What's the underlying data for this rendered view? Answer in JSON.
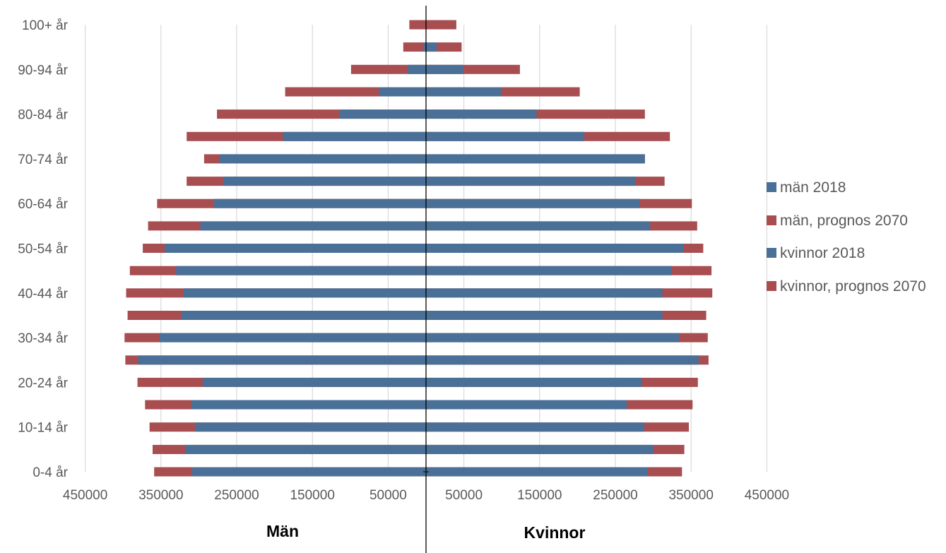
{
  "chart_data": {
    "type": "bar",
    "orientation": "population-pyramid",
    "categories": [
      "0-4 år",
      "",
      "10-14 år",
      "",
      "20-24 år",
      "",
      "30-34 år",
      "",
      "40-44 år",
      "",
      "50-54 år",
      "",
      "60-64 år",
      "",
      "70-74 år",
      "",
      "80-84 år",
      "",
      "90-94 år",
      "",
      "100+ år"
    ],
    "y_tick_labels": [
      "0-4 år",
      "10-14 år",
      "20-24 år",
      "30-34 år",
      "40-44 år",
      "50-54 år",
      "60-64 år",
      "70-74 år",
      "80-84 år",
      "90-94 år",
      "100+ år"
    ],
    "x_tick_labels_left": [
      "450000",
      "350000",
      "250000",
      "150000",
      "50000"
    ],
    "x_tick_labels_right": [
      "50000",
      "150000",
      "250000",
      "350000",
      "450000"
    ],
    "x_max": 450000,
    "left_label": "Män",
    "right_label": "Kvinnor",
    "grid": true,
    "legend_position": "right",
    "series": [
      {
        "name": "män 2018",
        "side": "left",
        "color": "#4a7098",
        "values": [
          309000,
          318000,
          305000,
          310000,
          295000,
          380000,
          352000,
          323000,
          320000,
          330000,
          345000,
          298000,
          280000,
          268000,
          273000,
          189000,
          114000,
          62000,
          24000,
          3000,
          0
        ]
      },
      {
        "name": "män, prognos 2070",
        "side": "left",
        "color": "#a84d50",
        "values": [
          359000,
          361000,
          365000,
          371000,
          381000,
          397000,
          398000,
          394000,
          396000,
          391000,
          374000,
          367000,
          355000,
          316000,
          293000,
          316000,
          276000,
          186000,
          99000,
          30000,
          22000
        ]
      },
      {
        "name": "kvinnor 2018",
        "side": "right",
        "color": "#4a7098",
        "values": [
          293000,
          300000,
          288000,
          265000,
          285000,
          360000,
          334000,
          312000,
          312000,
          324000,
          340000,
          296000,
          282000,
          276000,
          289000,
          209000,
          146000,
          99000,
          49000,
          14000,
          0
        ]
      },
      {
        "name": "kvinnor, prognos 2070",
        "side": "right",
        "color": "#a84d50",
        "values": [
          338000,
          341000,
          347000,
          352000,
          359000,
          373000,
          372000,
          370000,
          378000,
          377000,
          366000,
          358000,
          351000,
          315000,
          289000,
          322000,
          289000,
          203000,
          124000,
          47000,
          40000
        ]
      }
    ]
  }
}
